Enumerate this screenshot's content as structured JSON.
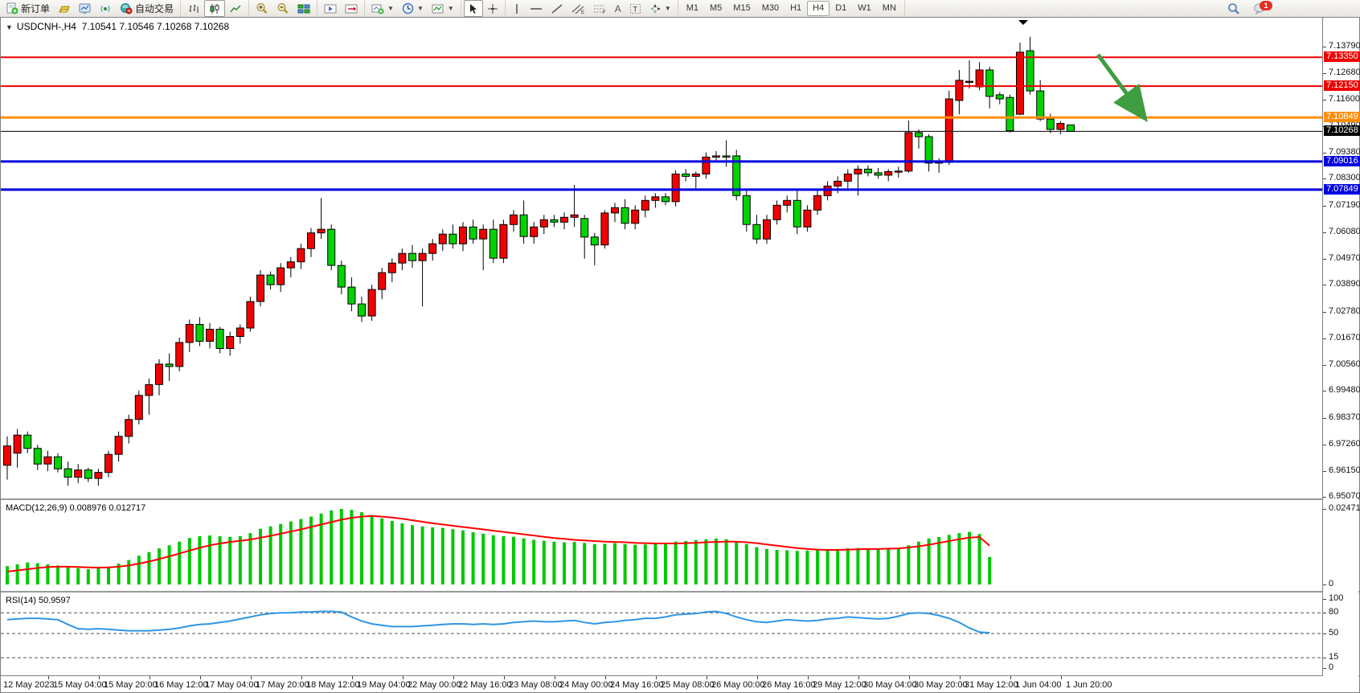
{
  "toolbar": {
    "new_order_label": "新订单",
    "autotrade_label": "自动交易",
    "timeframes": [
      "M1",
      "M5",
      "M15",
      "M30",
      "H1",
      "H4",
      "D1",
      "W1",
      "MN"
    ],
    "active_timeframe": "H4",
    "notification_count": "1"
  },
  "quote_bar": {
    "symbol": "USDCNH-,H4",
    "ohlc": "7.10541 7.10546 7.10268 7.10268"
  },
  "indicators": {
    "macd_label": "MACD(12,26,9) 0.008976 0.012717",
    "rsi_label": "RSI(14) 50.9597"
  },
  "price_axis": {
    "ticks": [
      7.1379,
      7.1268,
      7.116,
      7.1049,
      7.0938,
      7.083,
      7.0719,
      7.0608,
      7.0497,
      7.0389,
      7.0278,
      7.0167,
      7.0056,
      6.9948,
      6.9837,
      6.9726,
      6.9615,
      6.9507
    ],
    "tags": [
      {
        "label": "7.13350",
        "price": 7.1335,
        "color": "#ee0000"
      },
      {
        "label": "7.12150",
        "price": 7.1215,
        "color": "#ee0000"
      },
      {
        "label": "7.10849",
        "price": 7.10849,
        "color": "#ff8d0a"
      },
      {
        "label": "7.10268",
        "price": 7.10268,
        "color": "#000000"
      },
      {
        "label": "7.09016",
        "price": 7.09016,
        "color": "#0000e0"
      },
      {
        "label": "7.07849",
        "price": 7.07849,
        "color": "#0000e0"
      }
    ],
    "macd_axis": [
      [
        "0.024712",
        0.024712
      ],
      [
        "0",
        0
      ]
    ],
    "rsi_axis": [
      [
        "100",
        100
      ],
      [
        "80",
        80
      ],
      [
        "50",
        50
      ],
      [
        "15",
        15
      ],
      [
        "0",
        0
      ]
    ]
  },
  "time_axis": {
    "labels": [
      {
        "text": "12 May 2023",
        "x": 3
      },
      {
        "text": "15 May 04:00",
        "x": 65
      },
      {
        "text": "15 May 20:00",
        "x": 128
      },
      {
        "text": "16 May 12:00",
        "x": 191
      },
      {
        "text": "17 May 04:00",
        "x": 254
      },
      {
        "text": "17 May 20:00",
        "x": 317
      },
      {
        "text": "18 May 12:00",
        "x": 380
      },
      {
        "text": "19 May 04:00",
        "x": 443
      },
      {
        "text": "22 May 00:00",
        "x": 506
      },
      {
        "text": "22 May 16:00",
        "x": 569
      },
      {
        "text": "23 May 08:00",
        "x": 632
      },
      {
        "text": "24 May 00:00",
        "x": 695
      },
      {
        "text": "24 May 16:00",
        "x": 758
      },
      {
        "text": "25 May 08:00",
        "x": 821
      },
      {
        "text": "26 May 00:00",
        "x": 884
      },
      {
        "text": "26 May 16:00",
        "x": 947
      },
      {
        "text": "29 May 12:00",
        "x": 1010
      },
      {
        "text": "30 May 04:00",
        "x": 1073
      },
      {
        "text": "30 May 20:00",
        "x": 1136
      },
      {
        "text": "31 May 12:00",
        "x": 1199
      },
      {
        "text": "1 Jun 04:00",
        "x": 1262
      },
      {
        "text": "1 Jun 20:00",
        "x": 1325
      }
    ]
  },
  "annotation": {
    "type": "arrow",
    "color": "#3e9d40",
    "from": [
      1365,
      46
    ],
    "to": [
      1421,
      122
    ]
  },
  "chart_data": [
    {
      "type": "candlestick",
      "title": "USDCNH-,H4",
      "timeframe": "H4",
      "bull_color": "#f20000",
      "bear_color": "#00d300",
      "ylim": [
        6.9502,
        7.1499
      ],
      "hlines": [
        {
          "price": 7.1335,
          "color": "#ee0000",
          "width": 2
        },
        {
          "price": 7.1215,
          "color": "#ee0000",
          "width": 2
        },
        {
          "price": 7.10849,
          "color": "#ff8d0a",
          "width": 3
        },
        {
          "price": 7.10268,
          "color": "#000000",
          "width": 1
        },
        {
          "price": 7.09016,
          "color": "#0000e0",
          "width": 3
        },
        {
          "price": 7.07849,
          "color": "#0000e0",
          "width": 3
        }
      ],
      "ohlc": [
        [
          6.964,
          6.976,
          6.958,
          6.972
        ],
        [
          6.969,
          6.979,
          6.963,
          6.9765
        ],
        [
          6.9765,
          6.978,
          6.969,
          6.971
        ],
        [
          6.971,
          6.9725,
          6.962,
          6.9645
        ],
        [
          6.9645,
          6.97,
          6.9615,
          6.9675
        ],
        [
          6.9675,
          6.969,
          6.961,
          6.9625
        ],
        [
          6.9625,
          6.9655,
          6.9555,
          6.959
        ],
        [
          6.959,
          6.9645,
          6.9565,
          6.962
        ],
        [
          6.962,
          6.963,
          6.957,
          6.9585
        ],
        [
          6.9585,
          6.9625,
          6.9555,
          6.961
        ],
        [
          6.961,
          6.97,
          6.959,
          6.9685
        ],
        [
          6.9685,
          6.978,
          6.9655,
          6.976
        ],
        [
          6.976,
          6.985,
          6.973,
          6.983
        ],
        [
          6.983,
          6.995,
          6.981,
          6.993
        ],
        [
          6.993,
          7.0,
          6.985,
          6.9975
        ],
        [
          6.9975,
          7.008,
          6.993,
          7.006
        ],
        [
          7.006,
          7.0105,
          6.999,
          7.005
        ],
        [
          7.005,
          7.017,
          7.003,
          7.015
        ],
        [
          7.015,
          7.0245,
          7.011,
          7.0225
        ],
        [
          7.0225,
          7.0255,
          7.0135,
          7.0155
        ],
        [
          7.0155,
          7.023,
          7.0125,
          7.0205
        ],
        [
          7.0205,
          7.0215,
          7.0105,
          7.0125
        ],
        [
          7.0125,
          7.0195,
          7.0095,
          7.0175
        ],
        [
          7.0175,
          7.0225,
          7.0145,
          7.021
        ],
        [
          7.021,
          7.034,
          7.0195,
          7.032
        ],
        [
          7.032,
          7.045,
          7.03,
          7.043
        ],
        [
          7.043,
          7.0445,
          7.037,
          7.039
        ],
        [
          7.039,
          7.048,
          7.036,
          7.046
        ],
        [
          7.046,
          7.0505,
          7.042,
          7.0485
        ],
        [
          7.0485,
          7.056,
          7.0455,
          7.054
        ],
        [
          7.054,
          7.0625,
          7.0505,
          7.0605
        ],
        [
          7.0605,
          7.075,
          7.058,
          7.062
        ],
        [
          7.062,
          7.064,
          7.045,
          7.047
        ],
        [
          7.047,
          7.049,
          7.035,
          7.038
        ],
        [
          7.038,
          7.042,
          7.028,
          7.031
        ],
        [
          7.031,
          7.034,
          7.0235,
          7.026
        ],
        [
          7.026,
          7.039,
          7.024,
          7.037
        ],
        [
          7.037,
          7.046,
          7.033,
          7.044
        ],
        [
          7.044,
          7.05,
          7.04,
          7.048
        ],
        [
          7.048,
          7.054,
          7.045,
          7.052
        ],
        [
          7.052,
          7.0555,
          7.046,
          7.049
        ],
        [
          7.049,
          7.054,
          7.03,
          7.052
        ],
        [
          7.052,
          7.058,
          7.049,
          7.056
        ],
        [
          7.056,
          7.062,
          7.053,
          7.06
        ],
        [
          7.06,
          7.064,
          7.054,
          7.056
        ],
        [
          7.056,
          7.065,
          7.053,
          7.063
        ],
        [
          7.063,
          7.066,
          7.056,
          7.058
        ],
        [
          7.058,
          7.064,
          7.045,
          7.062
        ],
        [
          7.062,
          7.066,
          7.048,
          7.05
        ],
        [
          7.05,
          7.066,
          7.048,
          7.064
        ],
        [
          7.064,
          7.07,
          7.061,
          7.068
        ],
        [
          7.068,
          7.074,
          7.056,
          7.059
        ],
        [
          7.059,
          7.065,
          7.056,
          7.063
        ],
        [
          7.063,
          7.068,
          7.06,
          7.066
        ],
        [
          7.066,
          7.068,
          7.063,
          7.065
        ],
        [
          7.065,
          7.069,
          7.062,
          7.067
        ],
        [
          7.067,
          7.0805,
          7.063,
          7.068
        ],
        [
          7.0665,
          7.068,
          7.0498,
          7.0588
        ],
        [
          7.0588,
          7.0605,
          7.047,
          7.0555
        ],
        [
          7.0555,
          7.07,
          7.054,
          7.0688
        ],
        [
          7.0688,
          7.073,
          7.065,
          7.071
        ],
        [
          7.071,
          7.0745,
          7.062,
          7.0645
        ],
        [
          7.0645,
          7.072,
          7.062,
          7.07
        ],
        [
          7.07,
          7.076,
          7.067,
          7.074
        ],
        [
          7.074,
          7.077,
          7.071,
          7.0755
        ],
        [
          7.0755,
          7.077,
          7.072,
          7.0735
        ],
        [
          7.0735,
          7.0865,
          7.0715,
          7.085
        ],
        [
          7.085,
          7.087,
          7.082,
          7.084
        ],
        [
          7.084,
          7.086,
          7.079,
          7.085
        ],
        [
          7.085,
          7.094,
          7.083,
          7.092
        ],
        [
          7.092,
          7.0945,
          7.09,
          7.0925
        ],
        [
          7.0925,
          7.099,
          7.088,
          7.092
        ],
        [
          7.0925,
          7.095,
          7.074,
          7.076
        ],
        [
          7.076,
          7.078,
          7.061,
          7.064
        ],
        [
          7.064,
          7.068,
          7.056,
          7.058
        ],
        [
          7.058,
          7.068,
          7.056,
          7.066
        ],
        [
          7.066,
          7.074,
          7.064,
          7.072
        ],
        [
          7.072,
          7.076,
          7.069,
          7.074
        ],
        [
          7.074,
          7.078,
          7.06,
          7.063
        ],
        [
          7.063,
          7.072,
          7.061,
          7.07
        ],
        [
          7.07,
          7.078,
          7.068,
          7.076
        ],
        [
          7.076,
          7.082,
          7.074,
          7.08
        ],
        [
          7.08,
          7.084,
          7.077,
          7.082
        ],
        [
          7.082,
          7.087,
          7.079,
          7.085
        ],
        [
          7.085,
          7.0885,
          7.076,
          7.087
        ],
        [
          7.087,
          7.0885,
          7.084,
          7.0855
        ],
        [
          7.0855,
          7.0875,
          7.083,
          7.0845
        ],
        [
          7.0845,
          7.087,
          7.082,
          7.086
        ],
        [
          7.086,
          7.088,
          7.0835,
          7.0862
        ],
        [
          7.0862,
          7.1072,
          7.0855,
          7.1022
        ],
        [
          7.1022,
          7.1035,
          7.0955,
          7.1005
        ],
        [
          7.1005,
          7.1015,
          7.086,
          7.0895
        ],
        [
          7.0895,
          7.0915,
          7.0855,
          7.09
        ],
        [
          7.0898,
          7.1196,
          7.0888,
          7.1162
        ],
        [
          7.1155,
          7.1282,
          7.1098,
          7.1239
        ],
        [
          7.1232,
          7.1322,
          7.1205,
          7.1235
        ],
        [
          7.1212,
          7.1315,
          7.1198,
          7.1282
        ],
        [
          7.1282,
          7.1295,
          7.1122,
          7.1172
        ],
        [
          7.1179,
          7.119,
          7.114,
          7.1162
        ],
        [
          7.1168,
          7.118,
          7.1022,
          7.103
        ],
        [
          7.1098,
          7.1396,
          7.1095,
          7.1356
        ],
        [
          7.1362,
          7.142,
          7.118,
          7.1195
        ],
        [
          7.1195,
          7.124,
          7.107,
          7.1078
        ],
        [
          7.1078,
          7.11,
          7.102,
          7.1035
        ],
        [
          7.1035,
          7.107,
          7.1015,
          7.106
        ],
        [
          7.10541,
          7.10546,
          7.10268,
          7.10268
        ]
      ]
    },
    {
      "type": "bar",
      "name": "MACD(12,26,9)",
      "current_values": "0.008976 0.012717",
      "ylim": [
        0,
        0.024712
      ],
      "colors": {
        "histogram": "#00c800",
        "signal": "#ff0000"
      },
      "histogram": [
        0.006,
        0.0066,
        0.0072,
        0.007,
        0.0066,
        0.0062,
        0.0057,
        0.0053,
        0.005,
        0.0053,
        0.0058,
        0.0068,
        0.008,
        0.0094,
        0.0106,
        0.0118,
        0.0128,
        0.014,
        0.0152,
        0.0158,
        0.016,
        0.0158,
        0.0156,
        0.0158,
        0.0168,
        0.0182,
        0.019,
        0.0198,
        0.0206,
        0.0214,
        0.0222,
        0.0232,
        0.0242,
        0.0247,
        0.0244,
        0.0236,
        0.0226,
        0.0216,
        0.0208,
        0.02,
        0.0194,
        0.019,
        0.0187,
        0.0185,
        0.0181,
        0.0177,
        0.0171,
        0.0166,
        0.0161,
        0.0158,
        0.0156,
        0.0151,
        0.0146,
        0.0143,
        0.014,
        0.0138,
        0.0139,
        0.0136,
        0.0132,
        0.0133,
        0.0135,
        0.0132,
        0.013,
        0.0131,
        0.0133,
        0.0136,
        0.014,
        0.0142,
        0.0145,
        0.0148,
        0.015,
        0.0148,
        0.0142,
        0.0132,
        0.0122,
        0.0116,
        0.0113,
        0.0112,
        0.011,
        0.0111,
        0.0112,
        0.0114,
        0.0116,
        0.0118,
        0.0119,
        0.0118,
        0.0117,
        0.0116,
        0.0118,
        0.0128,
        0.014,
        0.015,
        0.0155,
        0.0162,
        0.0168,
        0.0172,
        0.0165,
        0.009
      ],
      "signal": [
        0.0042,
        0.0046,
        0.005,
        0.0054,
        0.0057,
        0.0058,
        0.0058,
        0.0057,
        0.0056,
        0.0055,
        0.0056,
        0.0058,
        0.0062,
        0.0068,
        0.0075,
        0.0083,
        0.0092,
        0.0101,
        0.0111,
        0.012,
        0.0128,
        0.0134,
        0.0139,
        0.0143,
        0.0147,
        0.0153,
        0.0159,
        0.0166,
        0.0173,
        0.018,
        0.0188,
        0.0196,
        0.0204,
        0.0212,
        0.0218,
        0.0222,
        0.0224,
        0.0222,
        0.0219,
        0.0215,
        0.021,
        0.0205,
        0.02,
        0.0196,
        0.0192,
        0.0188,
        0.0184,
        0.018,
        0.0176,
        0.0172,
        0.0168,
        0.0164,
        0.016,
        0.0156,
        0.0152,
        0.0149,
        0.0146,
        0.0144,
        0.0142,
        0.014,
        0.0139,
        0.0138,
        0.0136,
        0.0135,
        0.0134,
        0.0134,
        0.0134,
        0.0135,
        0.0136,
        0.0138,
        0.0139,
        0.014,
        0.014,
        0.0138,
        0.0135,
        0.0131,
        0.0127,
        0.0123,
        0.0119,
        0.0116,
        0.0114,
        0.0113,
        0.0113,
        0.0114,
        0.0115,
        0.0116,
        0.0116,
        0.0117,
        0.0118,
        0.0121,
        0.0125,
        0.013,
        0.0136,
        0.0142,
        0.0148,
        0.0153,
        0.0155,
        0.0127
      ]
    },
    {
      "type": "line",
      "name": "RSI(14)",
      "current_value": 50.9597,
      "ylim": [
        0,
        100
      ],
      "levels": [
        80,
        50,
        15
      ],
      "color": "#2f96e4",
      "values": [
        70,
        71,
        72,
        72,
        71,
        70,
        63,
        57,
        56,
        57,
        56,
        55,
        54,
        54,
        54,
        55,
        56,
        58,
        61,
        63,
        64,
        66,
        68,
        71,
        74,
        77,
        79,
        80,
        80,
        81,
        81,
        82,
        82,
        81,
        74,
        68,
        64,
        62,
        60,
        60,
        60,
        61,
        62,
        63,
        64,
        64,
        63,
        64,
        63,
        64,
        66,
        67,
        68,
        67,
        67,
        68,
        69,
        66,
        64,
        66,
        67,
        69,
        70,
        72,
        72,
        74,
        77,
        78,
        79,
        81,
        82,
        79,
        74,
        70,
        67,
        66,
        68,
        70,
        69,
        68,
        69,
        71,
        72,
        74,
        73,
        72,
        71,
        72,
        75,
        79,
        80,
        79,
        76,
        72,
        66,
        58,
        52,
        51
      ]
    }
  ]
}
